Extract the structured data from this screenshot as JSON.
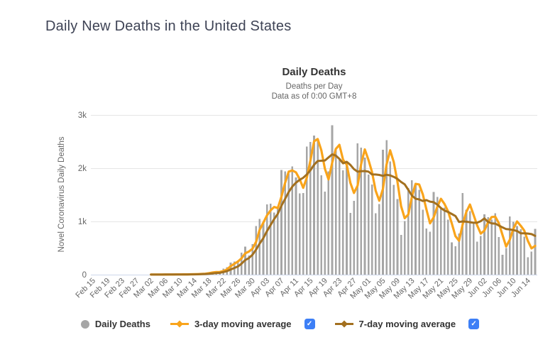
{
  "page": {
    "title": "Daily New Deaths in the United States"
  },
  "chart": {
    "title": "Daily Deaths",
    "subtitle_line1": "Deaths per Day",
    "subtitle_line2": "Data as of 0:00 GMT+8",
    "y_axis_title": "Novel Coronavirus Daily Deaths"
  },
  "legend": {
    "items": [
      {
        "label": "Daily Deaths",
        "marker": "circle",
        "color": "#a6a6a6",
        "has_checkbox": false
      },
      {
        "label": "3-day moving average",
        "marker": "line-diamond",
        "color": "#f9a41b",
        "has_checkbox": true,
        "checked": true
      },
      {
        "label": "7-day moving average",
        "marker": "line-diamond",
        "color": "#a3701f",
        "has_checkbox": true,
        "checked": true
      }
    ],
    "check_glyph": "✓"
  },
  "colors": {
    "page_title": "#3e4355",
    "bars": "#a6a6a6",
    "ma3_line": "#f9a41b",
    "ma7_line": "#a3701f",
    "gridline": "#e6e6e6",
    "axis_line": "#ccd6eb",
    "tick_text": "#666666",
    "checkbox_blue": "#3d7ff6"
  },
  "chart_data": {
    "type": "bar",
    "title": "Daily Deaths",
    "subtitle": "Deaths per Day — Data as of 0:00 GMT+8",
    "xlabel": "",
    "ylabel": "Novel Coronavirus Daily Deaths",
    "ylim": [
      0,
      3000
    ],
    "y_ticks": [
      {
        "value": 0,
        "label": "0"
      },
      {
        "value": 1000,
        "label": "1k"
      },
      {
        "value": 2000,
        "label": "2k"
      },
      {
        "value": 3000,
        "label": "3k"
      }
    ],
    "grid": true,
    "legend_position": "bottom",
    "date_range": "Feb 15 – Jun 16, daily",
    "x_tick_every_days": 4,
    "x_tick_labels": [
      "Feb 15",
      "Feb 19",
      "Feb 23",
      "Feb 27",
      "Mar 02",
      "Mar 06",
      "Mar 10",
      "Mar 14",
      "Mar 18",
      "Mar 22",
      "Mar 26",
      "Mar 30",
      "Apr 03",
      "Apr 07",
      "Apr 11",
      "Apr 15",
      "Apr 19",
      "Apr 23",
      "Apr 27",
      "May 01",
      "May 05",
      "May 09",
      "May 13",
      "May 17",
      "May 21",
      "May 25",
      "May 29",
      "Jun 02",
      "Jun 06",
      "Jun 10",
      "Jun 14"
    ],
    "series": [
      {
        "name": "Daily Deaths",
        "type": "bar",
        "color": "#a6a6a6",
        "values": [
          0,
          0,
          0,
          0,
          0,
          0,
          0,
          0,
          0,
          0,
          0,
          0,
          0,
          0,
          1,
          1,
          5,
          3,
          2,
          1,
          3,
          4,
          3,
          4,
          4,
          8,
          3,
          9,
          11,
          11,
          18,
          23,
          41,
          57,
          49,
          46,
          111,
          140,
          225,
          247,
          268,
          411,
          525,
          363,
          573,
          912,
          1049,
          968,
          1321,
          1331,
          1165,
          1255,
          1970,
          1940,
          1900,
          2035,
          1830,
          1528,
          1535,
          2407,
          2494,
          2615,
          2536,
          1867,
          1561,
          1939,
          2804,
          2341,
          2173,
          1957,
          2065,
          1157,
          1384,
          2470,
          2390,
          2201,
          1883,
          1691,
          1154,
          1324,
          2350,
          2528,
          2129,
          1687,
          1422,
          750,
          1008,
          1630,
          1772,
          1715,
          1595,
          1218,
          865,
          808,
          1552,
          1461,
          1263,
          1260,
          1032,
          605,
          532,
          774,
          1535,
          1223,
          1193,
          960,
          621,
          730,
          1134,
          1083,
          1031,
          1155,
          709,
          373,
          503,
          1093,
          993,
          914,
          853,
          714,
          330,
          435,
          857
        ]
      },
      {
        "name": "3-day moving average",
        "type": "line",
        "color": "#f9a41b",
        "derived_from": "trailing 3-day mean of Daily Deaths, shown from Mar 02"
      },
      {
        "name": "7-day moving average",
        "type": "line",
        "color": "#a3701f",
        "derived_from": "trailing 7-day mean of Daily Deaths, shown from Mar 02"
      }
    ]
  }
}
